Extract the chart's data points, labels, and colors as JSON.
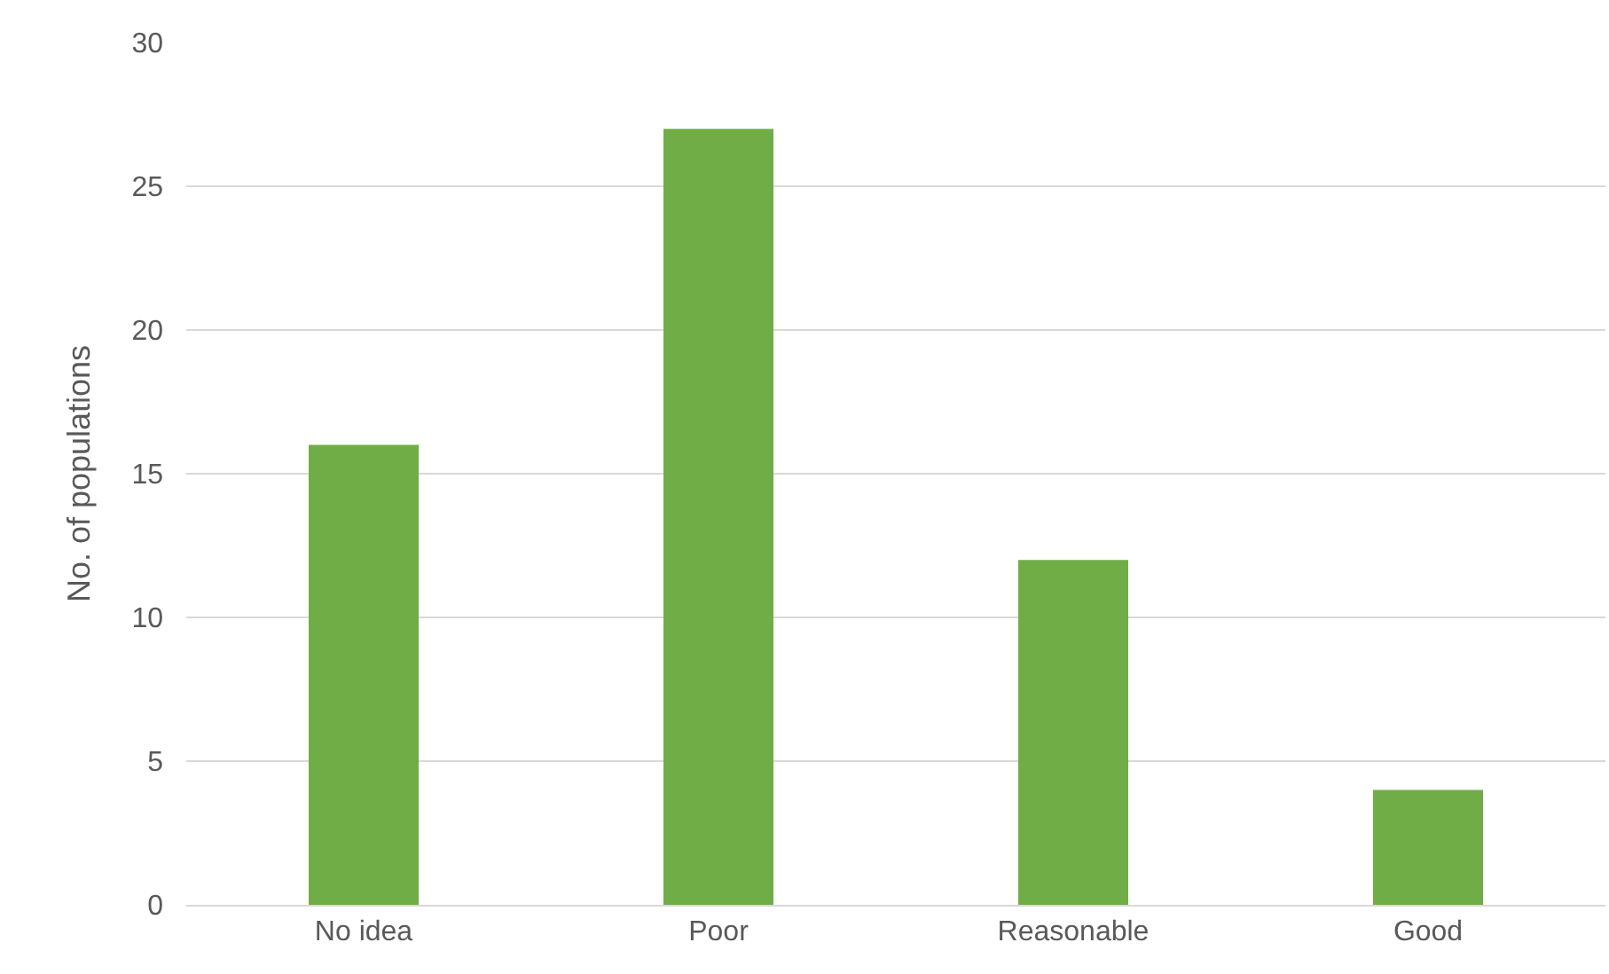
{
  "chart_data": {
    "type": "bar",
    "ylabel": "No. of populations",
    "categories": [
      "No idea",
      "Poor",
      "Reasonable",
      "Good"
    ],
    "values": [
      16,
      27,
      12,
      4
    ],
    "color": "#70ad47",
    "ylim": [
      0,
      30
    ],
    "yticks": [
      0,
      5,
      10,
      15,
      20,
      25,
      30
    ],
    "grid": "y"
  }
}
